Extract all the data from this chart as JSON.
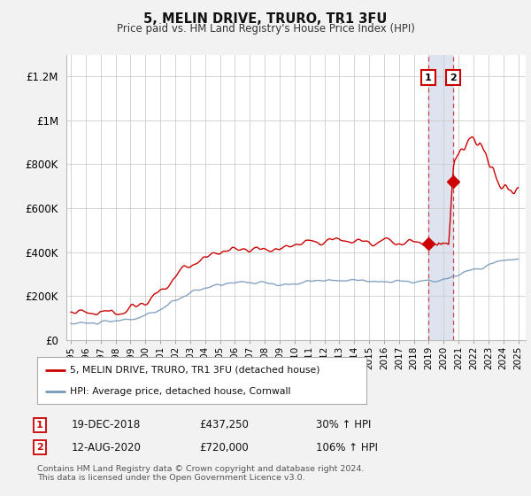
{
  "title": "5, MELIN DRIVE, TRURO, TR1 3FU",
  "subtitle": "Price paid vs. HM Land Registry's House Price Index (HPI)",
  "ylabel_ticks": [
    "£0",
    "£200K",
    "£400K",
    "£600K",
    "£800K",
    "£1M",
    "£1.2M"
  ],
  "y_values": [
    0,
    200000,
    400000,
    600000,
    800000,
    1000000,
    1200000
  ],
  "ylim": [
    0,
    1300000
  ],
  "xlim_start": 1994.7,
  "xlim_end": 2025.5,
  "red_color": "#cc0000",
  "blue_color": "#7799bb",
  "sale1_x": 2018.96,
  "sale1_y": 437250,
  "sale2_x": 2020.62,
  "sale2_y": 720000,
  "annotation1_label": "1",
  "annotation2_label": "2",
  "legend_red": "5, MELIN DRIVE, TRURO, TR1 3FU (detached house)",
  "legend_blue": "HPI: Average price, detached house, Cornwall",
  "table_row1": [
    "1",
    "19-DEC-2018",
    "£437,250",
    "30% ↑ HPI"
  ],
  "table_row2": [
    "2",
    "12-AUG-2020",
    "£720,000",
    "106% ↑ HPI"
  ],
  "footnote": "Contains HM Land Registry data © Crown copyright and database right 2024.\nThis data is licensed under the Open Government Licence v3.0.",
  "bg_color": "#f2f2f2",
  "plot_bg": "#ffffff",
  "dashed_region_color": "#dde4f0",
  "dashed_x1": 2018.96,
  "dashed_x2": 2020.62
}
